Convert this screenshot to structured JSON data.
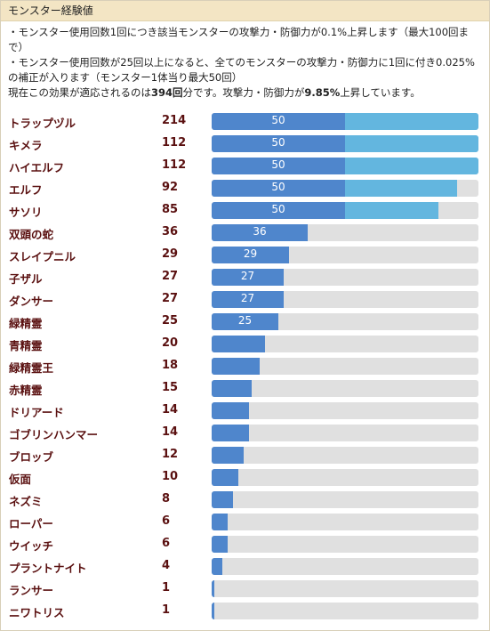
{
  "header": "モンスター経験値",
  "desc": {
    "line1": "・モンスター使用回数1回につき該当モンスターの攻撃力・防御力が0.1%上昇します（最大100回まで）",
    "line2": "・モンスター使用回数が25回以上になると、全てのモンスターの攻撃力・防御力に1回に付き0.025%の補正が入ります（モンスター1体当り最大50回）",
    "line3_pre": "現在この効果が適応されるのは",
    "line3_count": "394回",
    "line3_mid": "分です。攻撃力・防御力が",
    "line3_pct": "9.85%",
    "line3_post": "上昇しています。"
  },
  "monsters": [
    {
      "name": "トラップヅル",
      "count": 214,
      "label": "50"
    },
    {
      "name": "キメラ",
      "count": 112,
      "label": "50"
    },
    {
      "name": "ハイエルフ",
      "count": 112,
      "label": "50"
    },
    {
      "name": "エルフ",
      "count": 92,
      "label": "50"
    },
    {
      "name": "サソリ",
      "count": 85,
      "label": "50"
    },
    {
      "name": "双頭の蛇",
      "count": 36,
      "label": "36"
    },
    {
      "name": "スレイプニル",
      "count": 29,
      "label": "29"
    },
    {
      "name": "子ザル",
      "count": 27,
      "label": "27"
    },
    {
      "name": "ダンサー",
      "count": 27,
      "label": "27"
    },
    {
      "name": "緑精霊",
      "count": 25,
      "label": "25"
    },
    {
      "name": "青精霊",
      "count": 20,
      "label": ""
    },
    {
      "name": "緑精霊王",
      "count": 18,
      "label": ""
    },
    {
      "name": "赤精霊",
      "count": 15,
      "label": ""
    },
    {
      "name": "ドリアード",
      "count": 14,
      "label": ""
    },
    {
      "name": "ゴブリンハンマー",
      "count": 14,
      "label": ""
    },
    {
      "name": "ブロッブ",
      "count": 12,
      "label": ""
    },
    {
      "name": "仮面",
      "count": 10,
      "label": ""
    },
    {
      "name": "ネズミ",
      "count": 8,
      "label": ""
    },
    {
      "name": "ローパー",
      "count": 6,
      "label": ""
    },
    {
      "name": "ウイッチ",
      "count": 6,
      "label": ""
    },
    {
      "name": "プラントナイト",
      "count": 4,
      "label": ""
    },
    {
      "name": "ランサー",
      "count": 1,
      "label": ""
    },
    {
      "name": "ニワトリス",
      "count": 1,
      "label": ""
    }
  ],
  "scale": {
    "max": 100,
    "cap": 50
  },
  "colors": {
    "primary": "#4f86cc",
    "secondary": "#63b6df",
    "track": "#e0e0e0"
  }
}
